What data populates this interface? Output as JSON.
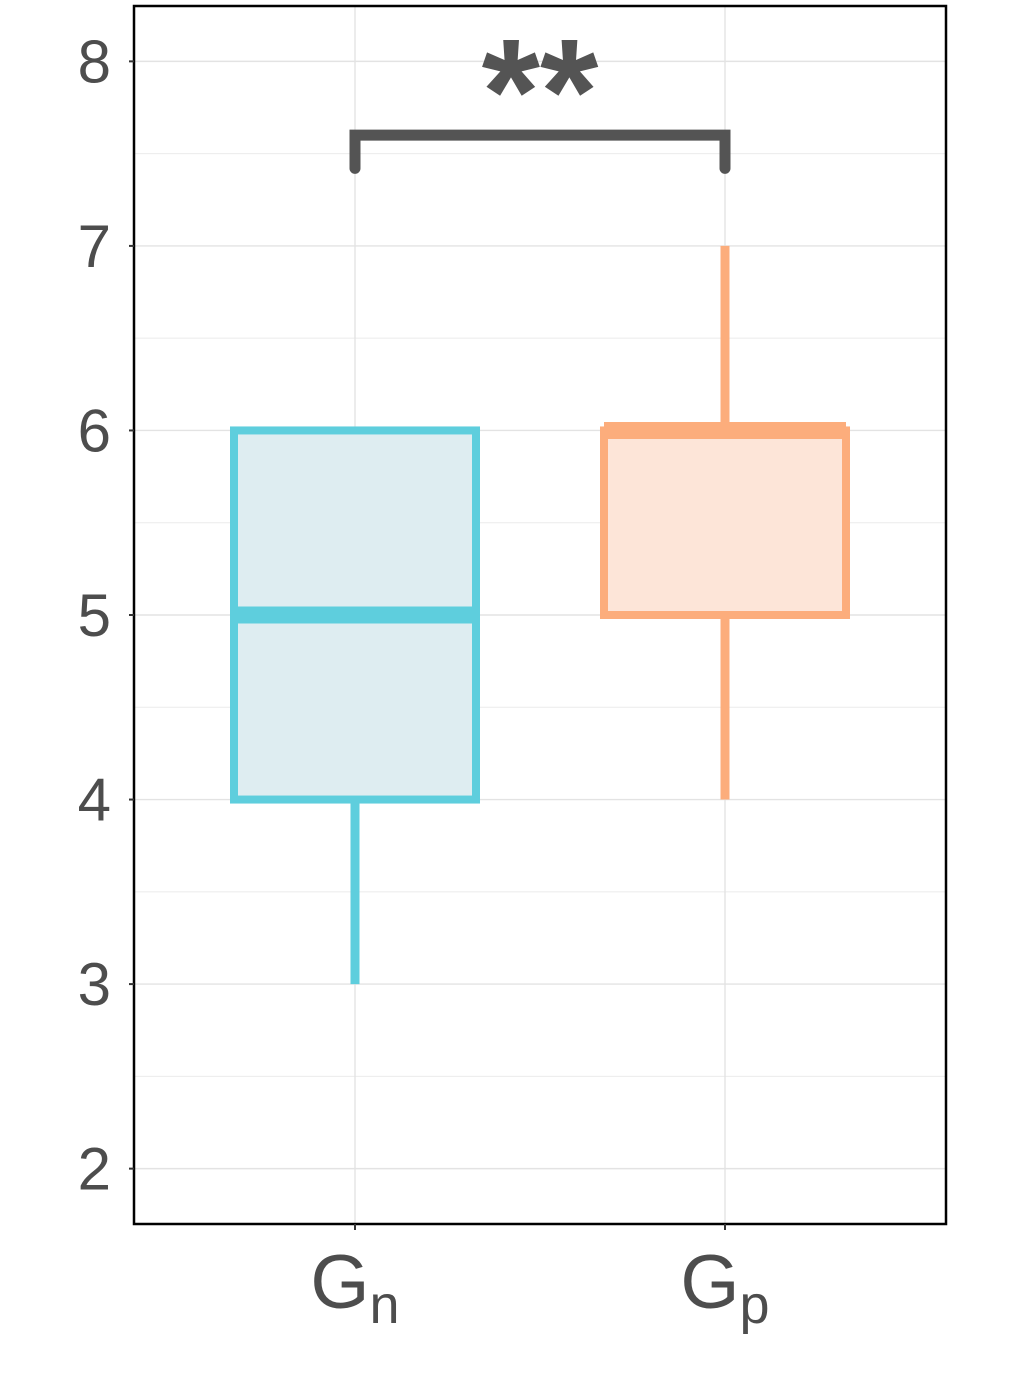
{
  "chart_data": {
    "type": "box",
    "title": "",
    "xlabel": "",
    "ylabel": "",
    "ylim": [
      1.7,
      8.3
    ],
    "yticks": [
      2,
      3,
      4,
      5,
      6,
      7,
      8
    ],
    "grid": true,
    "categories": [
      {
        "base": "G",
        "sub": "n"
      },
      {
        "base": "G",
        "sub": "p"
      }
    ],
    "boxes": [
      {
        "whisker_low": 3,
        "q1": 4,
        "median": 5,
        "q3": 6,
        "whisker_high": 6,
        "color": "#5ecedd",
        "fill": "#deedf1"
      },
      {
        "whisker_low": 4,
        "q1": 5,
        "median": 6,
        "q3": 6,
        "whisker_high": 7,
        "color": "#fcad7c",
        "fill": "#fde5d8"
      }
    ],
    "significance": {
      "label": "**",
      "from": 0,
      "to": 1,
      "y": 7.6,
      "drop_to": 7.42,
      "color": "#545454"
    }
  }
}
